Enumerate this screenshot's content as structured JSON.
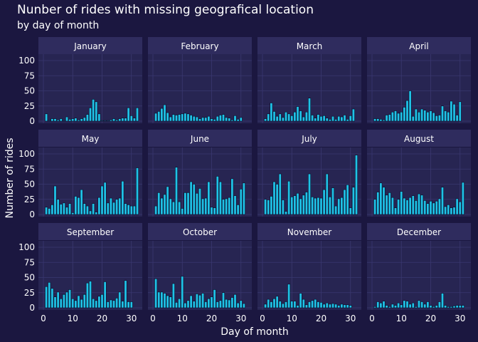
{
  "title": "Nunber of rides with missing geografical location",
  "subtitle": "by day of month",
  "colors": {
    "background": "#1b1740",
    "panel": "#272552",
    "strip": "#2f2c5e",
    "grid": "#3a3870",
    "bar_fill": "#1fc2e6",
    "bar_stroke": "#0b0f2a",
    "text": "#ffffff"
  },
  "chart_data": {
    "type": "bar",
    "facet": "month",
    "xlabel": "Day of month",
    "ylabel": "Number of rides",
    "xlim": [
      0,
      32
    ],
    "ylim": [
      0,
      100
    ],
    "x_ticks": [
      0,
      10,
      20,
      30
    ],
    "y_ticks": [
      0,
      25,
      50,
      75,
      100
    ],
    "grid": true,
    "panels": [
      {
        "month": "January",
        "values": [
          12,
          1,
          4,
          4,
          2,
          4,
          1,
          7,
          3,
          4,
          5,
          2,
          4,
          6,
          11,
          22,
          36,
          32,
          12,
          1,
          1,
          1,
          2,
          4,
          2,
          4,
          5,
          5,
          22,
          9,
          5,
          22
        ]
      },
      {
        "month": "February",
        "values": [
          13,
          16,
          21,
          27,
          14,
          7,
          11,
          10,
          11,
          12,
          13,
          12,
          10,
          8,
          7,
          4,
          6,
          6,
          8,
          4,
          3,
          8,
          10,
          11,
          6,
          5,
          2,
          9,
          3,
          6
        ]
      },
      {
        "month": "March",
        "values": [
          4,
          12,
          30,
          16,
          8,
          12,
          6,
          15,
          12,
          9,
          15,
          24,
          17,
          7,
          15,
          38,
          10,
          5,
          11,
          8,
          9,
          5,
          3,
          8,
          3,
          8,
          7,
          10,
          3,
          9,
          20
        ]
      },
      {
        "month": "April",
        "values": [
          4,
          4,
          3,
          2,
          10,
          11,
          15,
          17,
          13,
          15,
          23,
          34,
          50,
          8,
          20,
          15,
          20,
          18,
          15,
          17,
          14,
          9,
          10,
          25,
          17,
          15,
          33,
          28,
          10,
          32
        ]
      },
      {
        "month": "May",
        "values": [
          12,
          10,
          16,
          47,
          25,
          17,
          19,
          12,
          18,
          3,
          30,
          28,
          41,
          18,
          14,
          6,
          18,
          4,
          28,
          47,
          53,
          19,
          27,
          20,
          25,
          27,
          55,
          18,
          16,
          14,
          14,
          77
        ]
      },
      {
        "month": "June",
        "values": [
          14,
          36,
          27,
          33,
          46,
          26,
          21,
          78,
          21,
          10,
          36,
          36,
          54,
          50,
          35,
          43,
          26,
          27,
          54,
          12,
          11,
          63,
          54,
          25,
          26,
          28,
          59,
          31,
          16,
          42,
          52
        ]
      },
      {
        "month": "July",
        "values": [
          25,
          24,
          30,
          54,
          50,
          67,
          24,
          5,
          55,
          29,
          31,
          35,
          26,
          32,
          37,
          67,
          29,
          27,
          28,
          27,
          41,
          67,
          29,
          44,
          14,
          26,
          28,
          41,
          49,
          11,
          45,
          98
        ]
      },
      {
        "month": "August",
        "values": [
          25,
          37,
          52,
          45,
          32,
          36,
          28,
          11,
          25,
          38,
          27,
          24,
          28,
          31,
          23,
          34,
          32,
          23,
          18,
          22,
          19,
          22,
          26,
          45,
          13,
          16,
          11,
          12,
          26,
          21,
          53
        ]
      },
      {
        "month": "September",
        "values": [
          35,
          42,
          32,
          18,
          26,
          15,
          22,
          26,
          30,
          15,
          12,
          20,
          14,
          22,
          41,
          44,
          15,
          12,
          19,
          22,
          43,
          10,
          13,
          12,
          16,
          26,
          11,
          45,
          10,
          10
        ]
      },
      {
        "month": "October",
        "values": [
          48,
          26,
          26,
          24,
          20,
          18,
          40,
          9,
          15,
          52,
          8,
          12,
          20,
          11,
          23,
          21,
          24,
          10,
          15,
          18,
          30,
          10,
          12,
          25,
          14,
          13,
          17,
          22,
          8,
          12,
          7
        ]
      },
      {
        "month": "November",
        "values": [
          6,
          14,
          10,
          15,
          19,
          11,
          7,
          10,
          39,
          11,
          11,
          4,
          24,
          14,
          5,
          10,
          12,
          14,
          10,
          9,
          6,
          8,
          6,
          7,
          6,
          4,
          6,
          5,
          5,
          4
        ]
      },
      {
        "month": "December",
        "values": [
          2,
          10,
          8,
          11,
          4,
          2,
          6,
          4,
          8,
          5,
          12,
          11,
          6,
          8,
          2,
          12,
          10,
          6,
          10,
          4,
          2,
          4,
          10,
          24,
          4,
          2,
          2,
          3,
          4,
          4,
          4
        ]
      }
    ]
  }
}
